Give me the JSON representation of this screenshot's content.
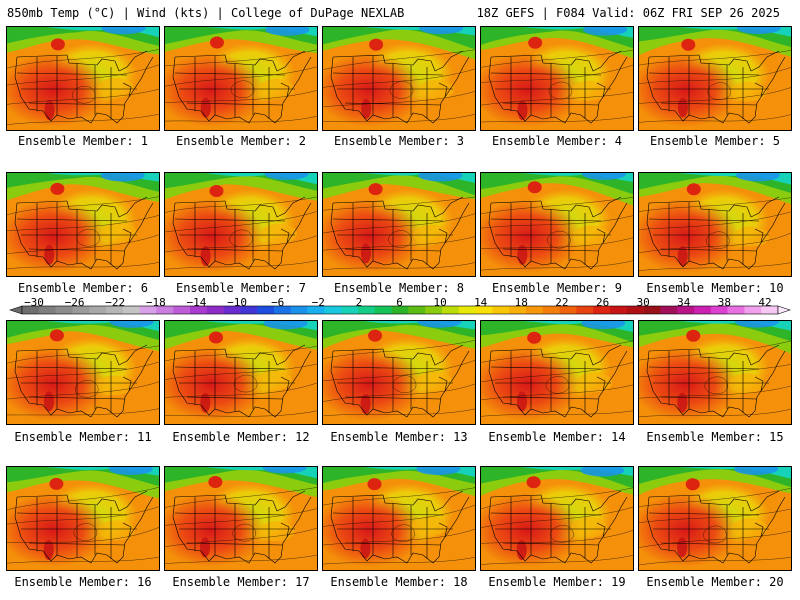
{
  "header": {
    "left": "850mb Temp (°C) | Wind (kts) | College of DuPage NEXLAB",
    "right": "18Z GEFS | F084 Valid: 06Z FRI SEP 26 2025"
  },
  "members": [
    "Ensemble Member: 1",
    "Ensemble Member: 2",
    "Ensemble Member: 3",
    "Ensemble Member: 4",
    "Ensemble Member: 5",
    "Ensemble Member: 6",
    "Ensemble Member: 7",
    "Ensemble Member: 8",
    "Ensemble Member: 9",
    "Ensemble Member: 10",
    "Ensemble Member: 11",
    "Ensemble Member: 12",
    "Ensemble Member: 13",
    "Ensemble Member: 14",
    "Ensemble Member: 15",
    "Ensemble Member: 16",
    "Ensemble Member: 17",
    "Ensemble Member: 18",
    "Ensemble Member: 19",
    "Ensemble Member: 20"
  ],
  "colorbar": {
    "labels": [
      "−30",
      "−26",
      "−22",
      "−18",
      "−14",
      "−10",
      "−6",
      "−2",
      "2",
      "6",
      "10",
      "14",
      "18",
      "22",
      "26",
      "30",
      "34",
      "38",
      "42"
    ],
    "colors": [
      "#6f6f6f",
      "#7e7e7e",
      "#8c8c8c",
      "#9a9a9a",
      "#a8a8a8",
      "#b6b6b6",
      "#c4c4c4",
      "#d8a0e8",
      "#cc7ee0",
      "#be5cd8",
      "#a93ad0",
      "#8e2cc8",
      "#6a2cd0",
      "#4236d8",
      "#1d4ee0",
      "#1a72e6",
      "#1a92ec",
      "#18b0ee",
      "#18c8e0",
      "#16d2b8",
      "#14ce88",
      "#14c458",
      "#2eb428",
      "#5cbc14",
      "#8ccc0e",
      "#bcdc0a",
      "#e8e80a",
      "#f8e008",
      "#f8c808",
      "#f8b008",
      "#f89808",
      "#f47e0a",
      "#f0620c",
      "#e84210",
      "#dc2410",
      "#c81414",
      "#b01014",
      "#981018",
      "#a0105a",
      "#b81488",
      "#cc20b0",
      "#dc40d0",
      "#e870e0",
      "#f0a0ec",
      "#f8c8f4"
    ]
  }
}
